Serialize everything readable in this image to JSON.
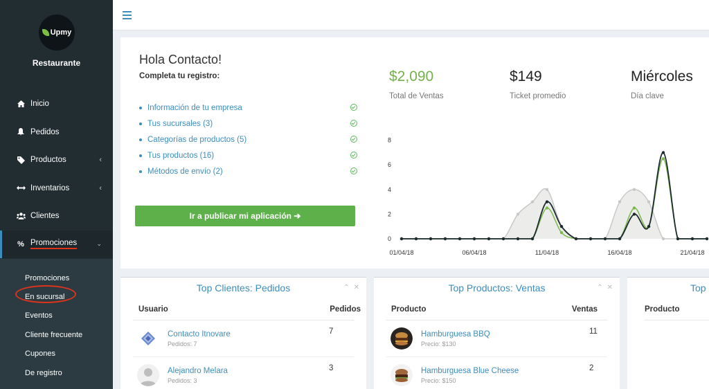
{
  "sidebar": {
    "logo_text": "Upmy",
    "brand": "Restaurante",
    "items": [
      {
        "label": "Inicio",
        "icon": "home-icon"
      },
      {
        "label": "Pedidos",
        "icon": "bell-icon"
      },
      {
        "label": "Productos",
        "icon": "tag-icon"
      },
      {
        "label": "Inventarios",
        "icon": "arrows-icon"
      },
      {
        "label": "Clientes",
        "icon": "users-icon"
      },
      {
        "label": "Promociones",
        "icon": "percent-icon"
      }
    ],
    "subitems": [
      "Promociones",
      "En sucursal",
      "Eventos",
      "Cliente frecuente",
      "Cupones",
      "De registro"
    ]
  },
  "main": {
    "greeting": "Hola Contacto!",
    "subtitle": "Completa tu registro:",
    "todo": [
      "Información de tu empresa",
      "Tus sucursales (3)",
      "Categorías de productos (5)",
      "Tus productos (16)",
      "Métodos de envío (2)"
    ],
    "cta": "Ir a publicar mi aplicación ➔",
    "stats": [
      {
        "value": "$2,090",
        "label": "Total de Ventas"
      },
      {
        "value": "$149",
        "label": "Ticket promedio"
      },
      {
        "value": "Miércoles",
        "label": "Día clave"
      }
    ]
  },
  "chart_data": {
    "type": "line",
    "x": [
      "01/04/18",
      "02/04/18",
      "03/04/18",
      "04/04/18",
      "05/04/18",
      "06/04/18",
      "07/04/18",
      "08/04/18",
      "09/04/18",
      "10/04/18",
      "11/04/18",
      "12/04/18",
      "13/04/18",
      "14/04/18",
      "15/04/18",
      "16/04/18",
      "17/04/18",
      "18/04/18",
      "19/04/18",
      "20/04/18",
      "21/04/18",
      "22/04/18"
    ],
    "x_tick_labels": [
      "01/04/18",
      "06/04/18",
      "11/04/18",
      "16/04/18",
      "21/04/18"
    ],
    "series": [
      {
        "values": [
          0,
          0,
          0,
          0,
          0,
          0,
          0,
          0,
          2,
          3,
          4,
          1,
          0,
          0,
          0,
          3,
          4,
          3,
          0,
          0,
          0,
          0
        ],
        "color": "#c8c8c8"
      },
      {
        "values": [
          0,
          0,
          0,
          0,
          0,
          0,
          0,
          0,
          0,
          0,
          2.5,
          0.5,
          0,
          0,
          0,
          0,
          2.5,
          1,
          6.5,
          0,
          0,
          0
        ],
        "color": "#7ab94b"
      },
      {
        "values": [
          0,
          0,
          0,
          0,
          0,
          0,
          0,
          0,
          0,
          0,
          3,
          1,
          0,
          0,
          0,
          0,
          2,
          1,
          7,
          0,
          0,
          0
        ],
        "color": "#1c2b30"
      }
    ],
    "yticks": [
      0,
      2,
      4,
      6,
      8
    ],
    "ylim": [
      0,
      8
    ],
    "grid": false
  },
  "boxes": [
    {
      "title": "Top Clientes: Pedidos",
      "col1": "Usuario",
      "col2": "Pedidos",
      "rows": [
        {
          "name": "Contacto Itnovare",
          "meta": "Pedidos: 7",
          "value": "7"
        },
        {
          "name": "Alejandro Melara",
          "meta": "Pedidos: 3",
          "value": "3"
        }
      ]
    },
    {
      "title": "Top Productos: Ventas",
      "col1": "Producto",
      "col2": "Ventas",
      "rows": [
        {
          "name": "Hamburguesa BBQ",
          "meta": "Precio: $130",
          "value": "11"
        },
        {
          "name": "Hamburguesa Blue Cheese",
          "meta": "Precio: $150",
          "value": "2"
        }
      ]
    },
    {
      "title": "Top",
      "col1": "Producto"
    }
  ]
}
